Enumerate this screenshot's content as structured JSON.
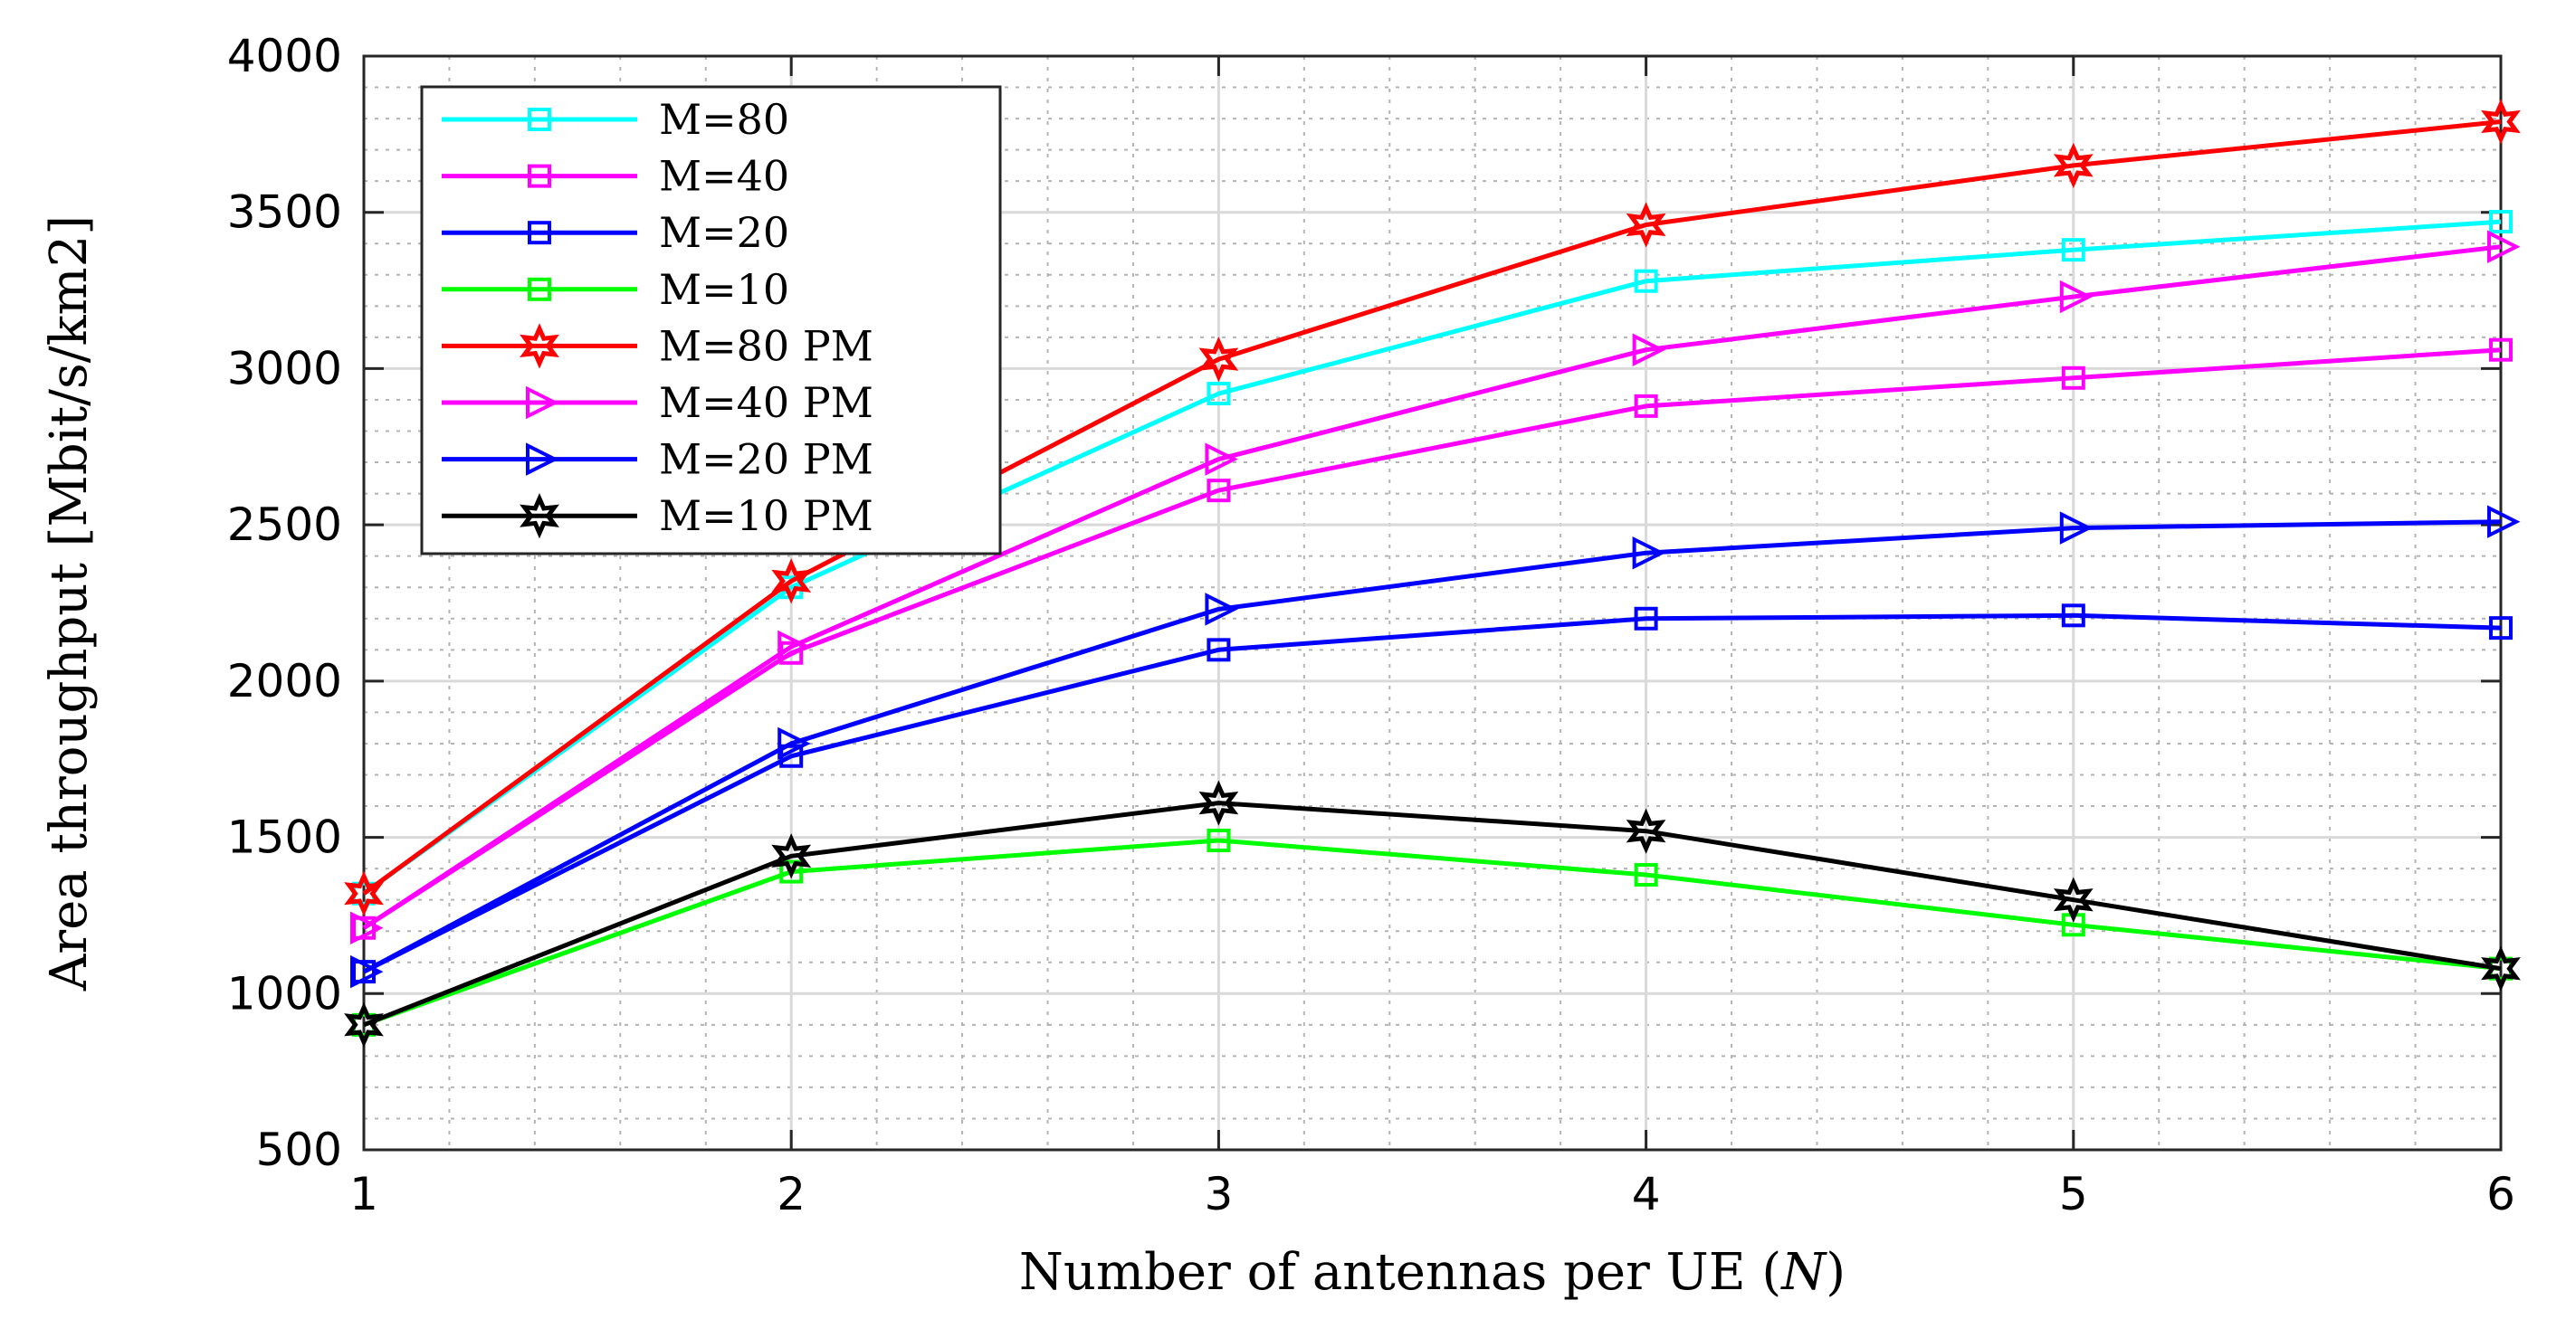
{
  "chart_data": {
    "type": "line",
    "title": "",
    "xlabel": "Number of antennas per UE (",
    "xlabel_var": "N",
    "xlabel_close": ")",
    "ylabel": "Area throughput [Mbit/s/km2]",
    "x": [
      1,
      2,
      3,
      4,
      5,
      6
    ],
    "xlim": [
      1,
      6
    ],
    "ylim": [
      500,
      4000
    ],
    "xticks": [
      1,
      2,
      3,
      4,
      5,
      6
    ],
    "xtick_labels": [
      "1",
      "2",
      "3",
      "4",
      "5",
      "6"
    ],
    "yticks": [
      500,
      1000,
      1500,
      2000,
      2500,
      3000,
      3500,
      4000
    ],
    "ytick_labels": [
      "500",
      "1000",
      "1500",
      "2000",
      "2500",
      "3000",
      "3500",
      "4000"
    ],
    "grid": true,
    "legend_position": "top-left",
    "series": [
      {
        "name": "M=80",
        "color": "#00ffff",
        "marker": "square",
        "values": [
          1320,
          2300,
          2920,
          3280,
          3380,
          3470
        ]
      },
      {
        "name": "M=40",
        "color": "#ff00ff",
        "marker": "square",
        "values": [
          1210,
          2090,
          2610,
          2880,
          2970,
          3060
        ]
      },
      {
        "name": "M=20",
        "color": "#0000ff",
        "marker": "square",
        "values": [
          1070,
          1760,
          2100,
          2200,
          2210,
          2170
        ]
      },
      {
        "name": "M=10",
        "color": "#00ff00",
        "marker": "square",
        "values": [
          900,
          1390,
          1490,
          1380,
          1220,
          1080
        ]
      },
      {
        "name": "M=80 PM",
        "color": "#ff0000",
        "marker": "hexagram",
        "values": [
          1320,
          2320,
          3030,
          3460,
          3650,
          3790
        ]
      },
      {
        "name": "M=40 PM",
        "color": "#ff00ff",
        "marker": "triangle-right",
        "values": [
          1210,
          2110,
          2710,
          3060,
          3230,
          3390
        ]
      },
      {
        "name": "M=20 PM",
        "color": "#0000ff",
        "marker": "triangle-right",
        "values": [
          1070,
          1800,
          2230,
          2410,
          2490,
          2510
        ]
      },
      {
        "name": "M=10 PM",
        "color": "#000000",
        "marker": "hexagram",
        "values": [
          900,
          1440,
          1610,
          1520,
          1300,
          1080
        ]
      }
    ]
  }
}
